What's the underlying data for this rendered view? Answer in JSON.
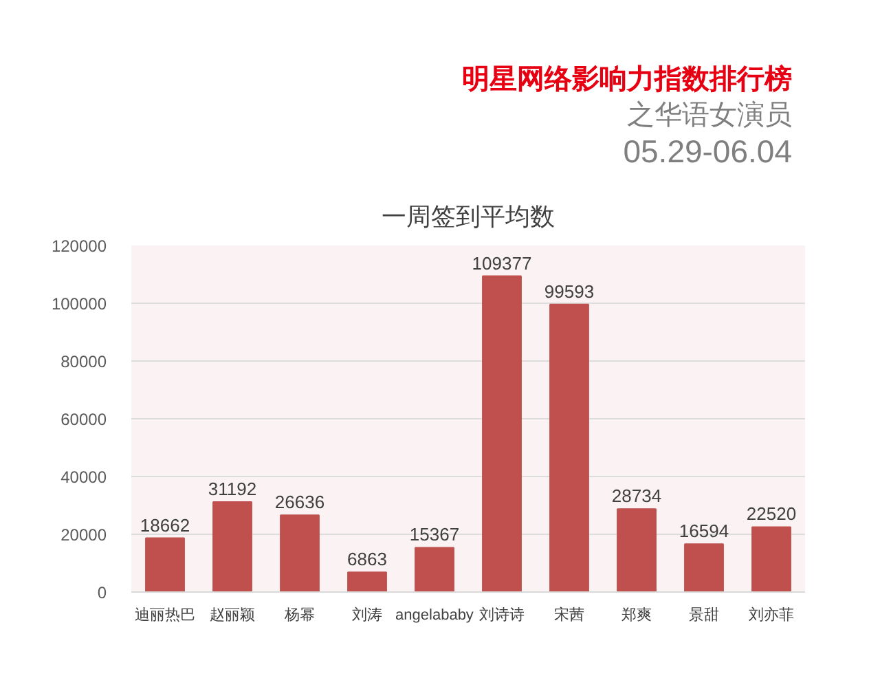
{
  "chart_data": {
    "type": "bar",
    "title": "一周签到平均数",
    "subtitle": "明星网络影响力指数排行榜",
    "annotations": [
      "之华语女演员",
      "05.29-06.04"
    ],
    "categories": [
      "迪丽热巴",
      "赵丽颖",
      "杨幂",
      "刘涛",
      "angelababy",
      "刘诗诗",
      "宋茜",
      "郑爽",
      "景甜",
      "刘亦菲"
    ],
    "values": [
      18662,
      31192,
      26636,
      6863,
      15367,
      109377,
      99593,
      28734,
      16594,
      22520
    ],
    "color": "#c0504d",
    "ylim": [
      0,
      120000
    ],
    "yticks": [
      0,
      20000,
      40000,
      60000,
      80000,
      100000,
      120000
    ],
    "grid": "y",
    "data_labels": true
  }
}
